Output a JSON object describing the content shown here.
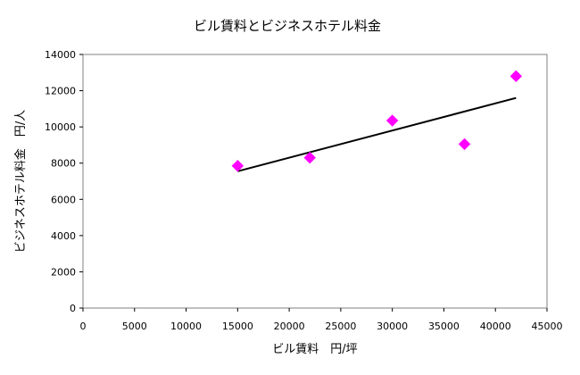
{
  "chart_data": {
    "type": "scatter",
    "title": "ビル賃料とビジネスホテル料金",
    "xlabel": "ビル賃料　円/坪",
    "ylabel": "ビジネスホテル料金　円/人",
    "xlim": [
      0,
      45000
    ],
    "ylim": [
      0,
      14000
    ],
    "x_ticks": [
      0,
      5000,
      10000,
      15000,
      20000,
      25000,
      30000,
      35000,
      40000,
      45000
    ],
    "y_ticks": [
      0,
      2000,
      4000,
      6000,
      8000,
      10000,
      12000,
      14000
    ],
    "grid": false,
    "legend": "none",
    "marker": "diamond",
    "marker_color": "#ff00ff",
    "trendline_color": "#000000",
    "series": [
      {
        "x": [
          15000,
          22000,
          30000,
          37000,
          42000
        ],
        "y": [
          7850,
          8300,
          10350,
          9050,
          12800
        ]
      }
    ],
    "trendline": {
      "type": "linear",
      "x": [
        15000,
        42000
      ],
      "y": [
        7550,
        11600
      ]
    }
  }
}
